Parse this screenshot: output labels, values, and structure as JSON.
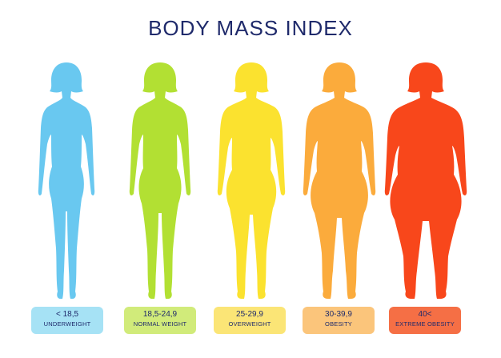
{
  "title": "BODY MASS INDEX",
  "categories": [
    {
      "range": "< 18,5",
      "label": "UNDERWEIGHT",
      "color": "#69c8f0",
      "badge_color": "#a6e2f5"
    },
    {
      "range": "18,5-24,9",
      "label": "NORMAL WEIGHT",
      "color": "#b2e033",
      "badge_color": "#d1eb7a"
    },
    {
      "range": "25-29,9",
      "label": "OVERWEIGHT",
      "color": "#fbe22f",
      "badge_color": "#fbe576"
    },
    {
      "range": "30-39,9",
      "label": "OBESITY",
      "color": "#fbab3c",
      "badge_color": "#fbc57b"
    },
    {
      "range": "40<",
      "label": "EXTREME OBESITY",
      "color": "#f8471b",
      "badge_color": "#f56f45"
    }
  ]
}
